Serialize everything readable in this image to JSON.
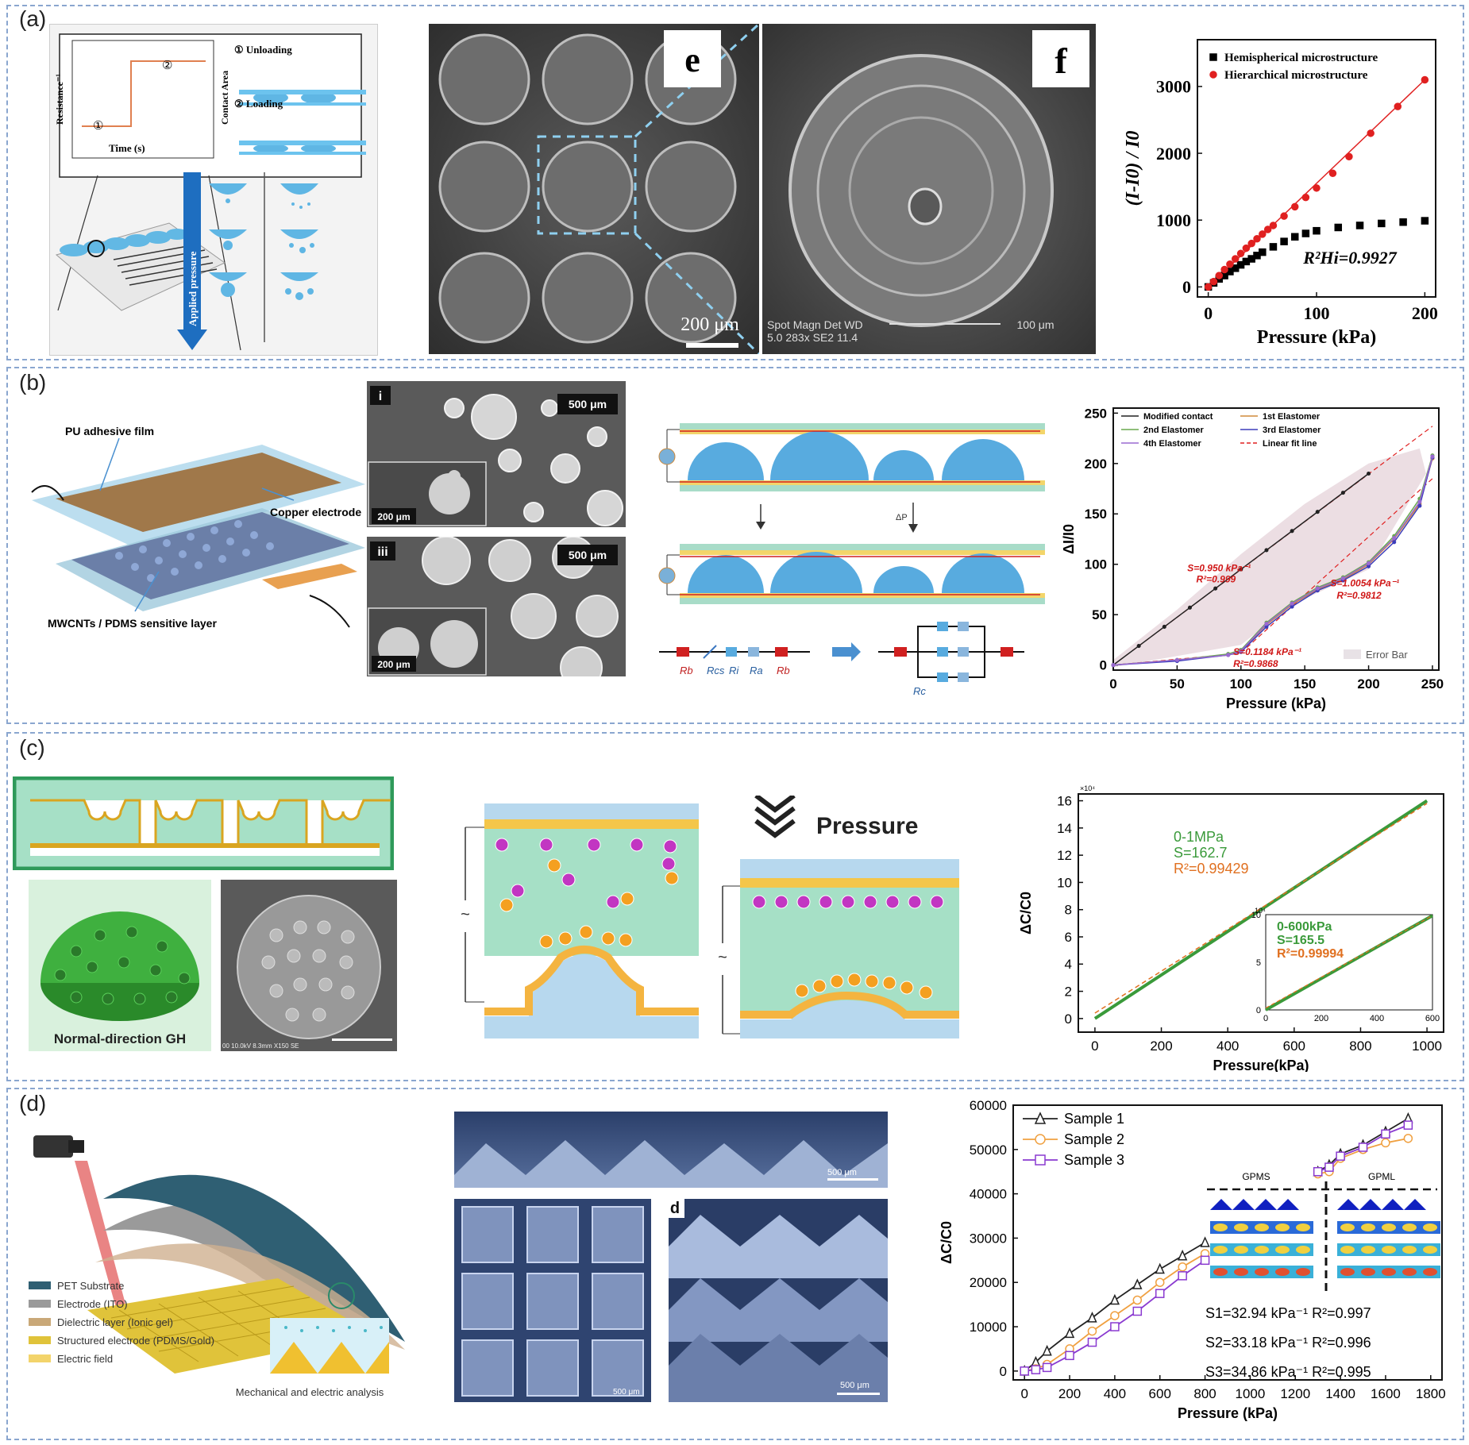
{
  "panels": {
    "a": {
      "label": "(a)",
      "schematic": {
        "ylabel": "Resistance⁻¹",
        "xlabel": "Time (s)",
        "state1": "①",
        "state2": "②",
        "contact_area": "Contact Area",
        "unloading": "① Unloading",
        "loading": "② Loading",
        "applied_pressure": "Applied pressure"
      },
      "sem": {
        "tag_e": "e",
        "tag_f": "f",
        "scale_e": "200 μm",
        "info_f_1": "Spot Magn   Det  WD",
        "info_f_2": "5.0  283x   SE2  11.4",
        "scale_f": "100 μm"
      }
    },
    "b": {
      "label": "(b)",
      "schematic": {
        "pu_film": "PU adhesive film",
        "copper": "Copper electrode",
        "sensitive": "MWCNTs / PDMS sensitive layer"
      },
      "sem": {
        "tag_i": "i",
        "tag_iii": "iii",
        "scale_main": "500 μm",
        "scale_inset": "200 μm"
      },
      "circuit": {
        "r_b": "R",
        "dp": "ΔP",
        "labels": [
          "Rb",
          "Rcs",
          "Ri",
          "Ra",
          "Rb"
        ],
        "rc": "Rc"
      }
    },
    "c": {
      "label": "(c)",
      "pressure_text": "Pressure",
      "gh_label": "Normal-direction GH",
      "sem_info": "00 10.0kV 8.3mm X150 SE"
    },
    "d": {
      "label": "(d)",
      "legend": [
        {
          "text": "PET Substrate",
          "color": "#2f5f73"
        },
        {
          "text": "Electrode (ITO)",
          "color": "#9a9a9a"
        },
        {
          "text": "Dielectric layer (Ionic gel)",
          "color": "#c9a878"
        },
        {
          "text": "Structured electrode (PDMS/Gold)",
          "color": "#e0c33a"
        },
        {
          "text": "Electric field",
          "color": "#f3d46b"
        }
      ],
      "mech": "Mechanical and electric analysis",
      "sem_tag": "d",
      "scale": "500 μm"
    }
  },
  "chart_data": [
    {
      "type": "scatter",
      "panel": "a",
      "xlabel": "Pressure (kPa)",
      "ylabel": "(I-I0) / I0",
      "xlim": [
        -10,
        210
      ],
      "ylim": [
        -150,
        3700
      ],
      "xticks": [
        0,
        100,
        200
      ],
      "yticks": [
        0,
        1000,
        2000,
        3000
      ],
      "annotation": "R²Hi=0.9927",
      "series": [
        {
          "name": "Hemispherical microstructure",
          "color": "#000000",
          "marker": "square",
          "x": [
            0,
            5,
            10,
            15,
            20,
            25,
            30,
            35,
            40,
            45,
            50,
            60,
            70,
            80,
            90,
            100,
            120,
            140,
            160,
            180,
            200
          ],
          "y": [
            0,
            60,
            120,
            170,
            230,
            280,
            330,
            380,
            420,
            470,
            520,
            600,
            680,
            750,
            800,
            840,
            890,
            920,
            950,
            970,
            990
          ]
        },
        {
          "name": "Hierarchical microstructure",
          "color": "#e02020",
          "marker": "circle",
          "x": [
            0,
            5,
            10,
            15,
            20,
            25,
            30,
            35,
            40,
            45,
            50,
            55,
            60,
            70,
            80,
            90,
            100,
            115,
            130,
            150,
            175,
            200
          ],
          "y": [
            0,
            80,
            170,
            260,
            340,
            420,
            500,
            580,
            650,
            720,
            790,
            860,
            920,
            1060,
            1200,
            1340,
            1480,
            1700,
            1950,
            2300,
            2700,
            3100
          ]
        }
      ],
      "fit_line": {
        "x": [
          0,
          200
        ],
        "y": [
          0,
          3100
        ]
      }
    },
    {
      "type": "line",
      "panel": "b",
      "xlabel": "Pressure (kPa)",
      "ylabel": "ΔI/I0",
      "xlim": [
        0,
        255
      ],
      "ylim": [
        -5,
        255
      ],
      "xticks": [
        0,
        50,
        100,
        150,
        200,
        250
      ],
      "yticks": [
        0,
        50,
        100,
        150,
        200,
        250
      ],
      "legend": [
        "Modified contact",
        "1st Elastomer",
        "2nd Elastomer",
        "3rd Elastomer",
        "4th Elastomer",
        "Linear fit line"
      ],
      "error_label": "Error Bar",
      "annotations": [
        {
          "text": "S=0.950 kPa⁻¹",
          "x": 58,
          "y": 93
        },
        {
          "text": "R²=0.999",
          "x": 65,
          "y": 82
        },
        {
          "text": "S=1.0054 kPa⁻¹",
          "x": 170,
          "y": 78
        },
        {
          "text": "R²=0.9812",
          "x": 175,
          "y": 66
        },
        {
          "text": "S=0.1184 kPa⁻¹",
          "x": 94,
          "y": 10
        },
        {
          "text": "R²=0.9868",
          "x": 94,
          "y": -2
        }
      ],
      "series": [
        {
          "name": "Modified contact",
          "color": "#222222",
          "x": [
            0,
            20,
            40,
            60,
            80,
            100,
            120,
            140,
            160,
            180,
            200
          ],
          "y": [
            0,
            19,
            38,
            57,
            76,
            95,
            114,
            133,
            152,
            171,
            190
          ]
        },
        {
          "name": "1st Elastomer",
          "color": "#d08a3a",
          "x": [
            0,
            50,
            90,
            100,
            120,
            140,
            160,
            180,
            200,
            220,
            240,
            250
          ],
          "y": [
            0,
            5,
            10,
            14,
            40,
            60,
            75,
            85,
            100,
            125,
            160,
            205
          ]
        },
        {
          "name": "2nd Elastomer",
          "color": "#6aa84f",
          "x": [
            0,
            50,
            90,
            100,
            120,
            140,
            160,
            180,
            200,
            220,
            240,
            250
          ],
          "y": [
            0,
            5,
            11,
            15,
            42,
            62,
            77,
            87,
            102,
            128,
            165,
            208
          ]
        },
        {
          "name": "3rd Elastomer",
          "color": "#3d3dbb",
          "x": [
            0,
            50,
            90,
            100,
            120,
            140,
            160,
            180,
            200,
            220,
            240,
            250
          ],
          "y": [
            0,
            4,
            10,
            13,
            38,
            58,
            74,
            84,
            98,
            122,
            158,
            206
          ]
        },
        {
          "name": "4th Elastomer",
          "color": "#9a6ad0",
          "x": [
            0,
            50,
            90,
            100,
            120,
            140,
            160,
            180,
            200,
            220,
            240,
            250
          ],
          "y": [
            0,
            5,
            10,
            14,
            41,
            61,
            76,
            86,
            101,
            126,
            162,
            207
          ]
        }
      ]
    },
    {
      "type": "line",
      "panel": "c",
      "xlabel": "Pressure(kPa)",
      "ylabel": "ΔC/C0",
      "xlim": [
        -50,
        1050
      ],
      "ylim": [
        -1,
        16.5
      ],
      "xticks": [
        0,
        200,
        400,
        600,
        800,
        1000
      ],
      "yticks": [
        0,
        2,
        4,
        6,
        8,
        10,
        12,
        14,
        16
      ],
      "y_multiplier": "×10⁴",
      "annotations": [
        {
          "text": "0-1MPa",
          "color": "#3a9a3a"
        },
        {
          "text": "S=162.7",
          "color": "#3a9a3a"
        },
        {
          "text": "R²=0.99429",
          "color": "#e07020"
        }
      ],
      "series": [
        {
          "name": "",
          "color": "#3a9a3a",
          "x": [
            0,
            1000
          ],
          "y": [
            0,
            16
          ]
        }
      ],
      "inset": {
        "xlim": [
          0,
          600
        ],
        "ylim": [
          0,
          10
        ],
        "xticks": [
          0,
          200,
          400,
          600
        ],
        "yticks": [
          0,
          5,
          10
        ],
        "y_multiplier": "10⁴",
        "annotations": [
          {
            "text": "0-600kPa",
            "color": "#3a9a3a"
          },
          {
            "text": "S=165.5",
            "color": "#3a9a3a"
          },
          {
            "text": "R²=0.99994",
            "color": "#e07020"
          }
        ],
        "series": [
          {
            "x": [
              0,
              600
            ],
            "y": [
              0,
              9.9
            ]
          }
        ]
      }
    },
    {
      "type": "line",
      "panel": "d",
      "xlabel": "Pressure (kPa)",
      "ylabel": "ΔC/C0",
      "xlim": [
        -50,
        1850
      ],
      "ylim": [
        -2000,
        60000
      ],
      "xticks": [
        0,
        200,
        400,
        600,
        800,
        1000,
        1200,
        1400,
        1600,
        1800
      ],
      "yticks": [
        0,
        10000,
        20000,
        30000,
        40000,
        50000,
        60000
      ],
      "series": [
        {
          "name": "Sample 1",
          "color": "#222222",
          "marker": "triangle",
          "x": [
            0,
            50,
            100,
            200,
            300,
            400,
            500,
            600,
            700,
            800,
            1300,
            1350,
            1400,
            1500,
            1600,
            1700
          ],
          "y": [
            0,
            2000,
            4500,
            8500,
            12000,
            16000,
            19500,
            23000,
            26000,
            29000,
            45000,
            46500,
            49000,
            51000,
            54000,
            57000
          ]
        },
        {
          "name": "Sample 2",
          "color": "#f0a040",
          "marker": "circle",
          "x": [
            0,
            50,
            100,
            200,
            300,
            400,
            500,
            600,
            700,
            800,
            1300,
            1350,
            1400,
            1500,
            1600,
            1700
          ],
          "y": [
            0,
            500,
            1500,
            5000,
            9000,
            12500,
            16000,
            20000,
            23500,
            26500,
            44500,
            45000,
            48000,
            50000,
            51500,
            52500
          ]
        },
        {
          "name": "Sample 3",
          "color": "#8a3ad0",
          "marker": "square",
          "x": [
            0,
            50,
            100,
            200,
            300,
            400,
            500,
            600,
            700,
            800,
            1300,
            1350,
            1400,
            1500,
            1600,
            1700
          ],
          "y": [
            0,
            300,
            800,
            3500,
            6500,
            10000,
            13500,
            17500,
            21500,
            25000,
            45000,
            46000,
            48500,
            50500,
            53500,
            55500
          ]
        }
      ],
      "sim_labels": [
        "GPMS",
        "GPML"
      ],
      "fits": [
        "S1=32.94 kPa⁻¹ R²=0.997",
        "S2=33.18 kPa⁻¹ R²=0.996",
        "S3=34.86 kPa⁻¹ R²=0.995"
      ]
    }
  ]
}
